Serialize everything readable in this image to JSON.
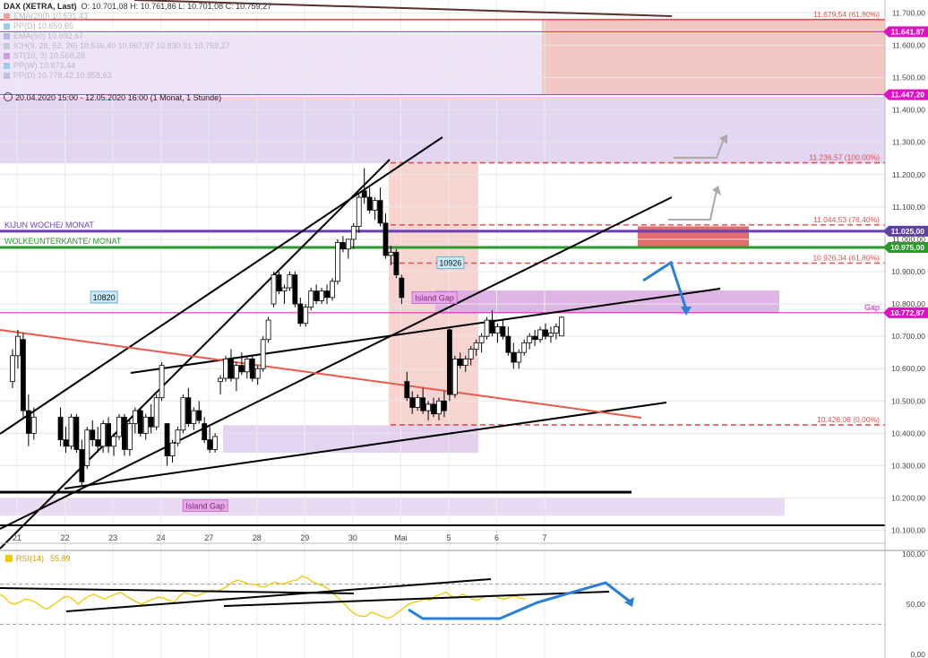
{
  "legend": {
    "title": "DAX (XETRA, Last)",
    "ohlc": "O: 10.701,08  H: 10.761,86  L: 10.701,08  C: 10.759,27",
    "indicators": [
      {
        "label": "EMA(200)  10.531,43",
        "color": "#f4a0a0"
      },
      {
        "label": "PP(D)  10.659,65",
        "color": "#9ecbe8"
      },
      {
        "label": "EMA(50)  10.692,67",
        "color": "#b8b8d8"
      },
      {
        "label": "ICH(9, 26, 52, 26)  10.646,40  10.667,97  10.830,91  10.759,27",
        "color": "#c8c8dc"
      },
      {
        "label": "ST(10, 3)  10.568,28",
        "color": "#c9a0e0"
      },
      {
        "label": "PP(W)  10.873,44",
        "color": "#9ecbe8"
      },
      {
        "label": "PP(D)  10.778,42  10.858,63",
        "color": "#c0c0d8"
      }
    ]
  },
  "date_range": "20.04.2020 15:00 - 12.05.2020 16:00  (1 Monat, 1 Stunde)",
  "chart_data": {
    "type": "candlestick",
    "title": "DAX (XETRA, Last)",
    "timeframe": "1 Stunde",
    "x_labels": [
      {
        "label": "21",
        "index": 0
      },
      {
        "label": "22",
        "index": 9
      },
      {
        "label": "23",
        "index": 18
      },
      {
        "label": "24",
        "index": 27
      },
      {
        "label": "27",
        "index": 36
      },
      {
        "label": "28",
        "index": 45
      },
      {
        "label": "29",
        "index": 54
      },
      {
        "label": "30",
        "index": 63
      },
      {
        "label": "Mai",
        "index": 72
      },
      {
        "label": "5",
        "index": 81
      },
      {
        "label": "6",
        "index": 90
      },
      {
        "label": "7",
        "index": 99
      }
    ],
    "x_range": [
      -2,
      148
    ],
    "ylim": [
      10060,
      11740
    ],
    "y_ticks": [
      10100,
      10200,
      10300,
      10400,
      10500,
      10600,
      10700,
      10800,
      10900,
      11000,
      11100,
      11200,
      11300,
      11400,
      11500,
      11600,
      11700
    ],
    "y_tick_labels": [
      "10.100,00",
      "10.200,00",
      "10.300,00",
      "10.400,00",
      "10.500,00",
      "10.600,00",
      "10.700,00",
      "10.800,00",
      "10.900,00",
      "11.000,00",
      "11.100,00",
      "11.200,00",
      "11.300,00",
      "11.400,00",
      "11.500,00",
      "11.600,00",
      "11.700,00"
    ],
    "candles": [
      [
        10560,
        10660,
        10540,
        10640
      ],
      [
        10640,
        10720,
        10600,
        10700
      ],
      [
        10690,
        10710,
        10450,
        10470
      ],
      [
        10470,
        10520,
        10360,
        10400
      ],
      [
        10400,
        10480,
        10380,
        10450
      ],
      [
        10450,
        10480,
        10360,
        10380
      ],
      [
        10380,
        10420,
        10340,
        10360
      ],
      [
        10360,
        10460,
        10350,
        10450
      ],
      [
        10450,
        10460,
        10340,
        10350
      ],
      [
        10350,
        10380,
        10240,
        10250
      ],
      [
        10300,
        10420,
        10290,
        10410
      ],
      [
        10410,
        10440,
        10360,
        10380
      ],
      [
        10380,
        10420,
        10340,
        10360
      ],
      [
        10360,
        10440,
        10340,
        10430
      ],
      [
        10430,
        10450,
        10340,
        10360
      ],
      [
        10360,
        10400,
        10330,
        10390
      ],
      [
        10390,
        10460,
        10380,
        10450
      ],
      [
        10450,
        10460,
        10330,
        10350
      ],
      [
        10350,
        10440,
        10330,
        10430
      ],
      [
        10430,
        10480,
        10400,
        10470
      ],
      [
        10470,
        10480,
        10390,
        10400
      ],
      [
        10400,
        10460,
        10380,
        10450
      ],
      [
        10450,
        10490,
        10400,
        10420
      ],
      [
        10420,
        10520,
        10410,
        10510
      ],
      [
        10510,
        10620,
        10500,
        10610
      ],
      [
        10430,
        10420,
        10300,
        10330
      ],
      [
        10330,
        10380,
        10310,
        10370
      ],
      [
        10370,
        10420,
        10360,
        10410
      ],
      [
        10410,
        10520,
        10400,
        10510
      ],
      [
        10510,
        10540,
        10420,
        10430
      ],
      [
        10430,
        10480,
        10410,
        10470
      ],
      [
        10470,
        10500,
        10430,
        10440
      ],
      [
        10430,
        10450,
        10370,
        10380
      ],
      [
        10380,
        10420,
        10340,
        10350
      ],
      [
        10350,
        10400,
        10340,
        10390
      ],
      [
        10560,
        10580,
        10520,
        10570
      ],
      [
        10570,
        10640,
        10560,
        10630
      ],
      [
        10630,
        10660,
        10560,
        10570
      ],
      [
        10570,
        10620,
        10530,
        10610
      ],
      [
        10610,
        10650,
        10580,
        10590
      ],
      [
        10590,
        10640,
        10570,
        10630
      ],
      [
        10630,
        10640,
        10560,
        10570
      ],
      [
        10570,
        10610,
        10550,
        10600
      ],
      [
        10600,
        10700,
        10590,
        10690
      ],
      [
        10690,
        10760,
        10680,
        10750
      ],
      [
        10800,
        10900,
        10790,
        10890
      ],
      [
        10890,
        10900,
        10830,
        10840
      ],
      [
        10840,
        10860,
        10800,
        10850
      ],
      [
        10850,
        10900,
        10840,
        10890
      ],
      [
        10890,
        10900,
        10790,
        10800
      ],
      [
        10800,
        10820,
        10730,
        10740
      ],
      [
        10740,
        10800,
        10730,
        10790
      ],
      [
        10790,
        10850,
        10780,
        10840
      ],
      [
        10840,
        10860,
        10800,
        10810
      ],
      [
        10810,
        10850,
        10800,
        10840
      ],
      [
        10840,
        10860,
        10800,
        10820
      ],
      [
        10820,
        10880,
        10810,
        10870
      ],
      [
        10870,
        11000,
        10860,
        10990
      ],
      [
        10990,
        11010,
        10960,
        10970
      ],
      [
        10970,
        11000,
        10940,
        11000
      ],
      [
        11000,
        11050,
        10970,
        11040
      ],
      [
        11040,
        11140,
        11020,
        11130
      ],
      [
        11150,
        11220,
        11110,
        11130
      ],
      [
        11130,
        11160,
        11080,
        11090
      ],
      [
        11090,
        11130,
        11060,
        11120
      ],
      [
        11120,
        11160,
        11040,
        11050
      ],
      [
        11050,
        11080,
        10940,
        10950
      ],
      [
        10950,
        10980,
        10920,
        10960
      ],
      [
        10960,
        10970,
        10880,
        10890
      ],
      [
        10880,
        10890,
        10800,
        10820
      ],
      [
        10560,
        10590,
        10500,
        10510
      ],
      [
        10510,
        10530,
        10460,
        10480
      ],
      [
        10480,
        10520,
        10470,
        10510
      ],
      [
        10510,
        10540,
        10460,
        10470
      ],
      [
        10470,
        10500,
        10440,
        10490
      ],
      [
        10490,
        10510,
        10450,
        10460
      ],
      [
        10460,
        10510,
        10440,
        10500
      ],
      [
        10500,
        10530,
        10450,
        10470
      ],
      [
        10720,
        10730,
        10500,
        10520
      ],
      [
        10520,
        10640,
        10510,
        10630
      ],
      [
        10630,
        10650,
        10600,
        10610
      ],
      [
        10610,
        10640,
        10590,
        10630
      ],
      [
        10630,
        10670,
        10610,
        10660
      ],
      [
        10660,
        10690,
        10640,
        10680
      ],
      [
        10680,
        10710,
        10650,
        10700
      ],
      [
        10700,
        10760,
        10690,
        10750
      ],
      [
        10750,
        10780,
        10700,
        10710
      ],
      [
        10710,
        10740,
        10680,
        10730
      ],
      [
        10730,
        10750,
        10690,
        10700
      ],
      [
        10700,
        10730,
        10640,
        10650
      ],
      [
        10650,
        10680,
        10600,
        10620
      ],
      [
        10620,
        10660,
        10600,
        10650
      ],
      [
        10650,
        10690,
        10640,
        10680
      ],
      [
        10680,
        10710,
        10660,
        10700
      ],
      [
        10700,
        10720,
        10670,
        10690
      ],
      [
        10690,
        10730,
        10680,
        10720
      ],
      [
        10720,
        10740,
        10690,
        10700
      ],
      [
        10700,
        10730,
        10680,
        10710
      ],
      [
        10710,
        10740,
        10690,
        10730
      ],
      [
        10701,
        10762,
        10701,
        10759
      ]
    ],
    "candle_x": [
      0,
      1,
      2,
      3,
      4,
      9,
      10,
      11,
      12,
      13,
      14,
      15,
      16,
      17,
      18,
      19,
      20,
      21,
      22,
      23,
      24,
      25,
      26,
      27,
      28,
      29,
      30,
      31,
      32,
      33,
      34,
      35,
      36,
      37,
      38,
      39,
      40,
      41,
      42,
      43,
      44,
      45,
      46,
      47,
      48,
      49,
      50,
      51,
      52,
      53,
      54,
      55,
      56,
      57,
      58,
      59,
      60,
      61,
      62,
      63,
      64,
      65,
      66,
      67,
      68,
      69,
      70,
      71,
      72,
      73,
      74,
      75,
      76,
      77,
      78,
      79,
      80,
      81,
      82,
      83,
      84,
      85,
      86,
      87,
      88,
      89,
      90,
      91,
      92,
      93,
      94,
      95,
      96,
      97,
      98,
      99,
      100,
      101,
      102,
      103,
      104
    ],
    "horizontal_levels": [
      {
        "value": 11679.54,
        "label": "11.679,54 (61,80%)",
        "color": "#e05050",
        "style": "solid"
      },
      {
        "value": 11236.57,
        "label": "11.236,57 (100,00%)",
        "color": "#e05050",
        "style": "dashed"
      },
      {
        "value": 11044.53,
        "label": "11.044,53 (76,40%)",
        "color": "#e05050",
        "style": "dashed"
      },
      {
        "value": 10926.34,
        "label": "10.926,34 (61,80%)",
        "color": "#e05050",
        "style": "dashed"
      },
      {
        "value": 10426.08,
        "label": "10.426,08 (0,00%)",
        "color": "#e05050",
        "style": "dashed"
      }
    ],
    "price_badges": [
      {
        "value": 11641.87,
        "label": "11.641,87",
        "color": "#e010c0"
      },
      {
        "value": 11447.2,
        "label": "11.447,20",
        "color": "#e010c0"
      },
      {
        "value": 11025.0,
        "label": "11.025,00",
        "color": "#6040a0"
      },
      {
        "value": 10975.0,
        "label": "10.975,00",
        "color": "#2a9a2a"
      },
      {
        "value": 10772.87,
        "label": "10.772,87",
        "color": "#e010c0"
      }
    ],
    "named_lines": [
      {
        "value": 11025,
        "label": "KIJUN WOCHE/ MONAT",
        "color": "#6a3fb0"
      },
      {
        "value": 10975,
        "label": "WOLKEUNTERKANTE/ MONAT",
        "color": "#2a9a2a"
      },
      {
        "value": 10772.87,
        "label": "Gap",
        "color": "#e010c0"
      }
    ],
    "zone_labels": [
      {
        "label": "Island Gap",
        "x": 79,
        "y": 10818
      },
      {
        "label": "Island Gap",
        "x": 36,
        "y": 10175
      }
    ],
    "value_boxes": [
      {
        "label": "10820",
        "x": 17,
        "y": 10820
      },
      {
        "label": "10926",
        "x": 82,
        "y": 10926
      }
    ],
    "rsi": {
      "label": "RSI(14)",
      "value": "55,89",
      "ylim": [
        0,
        100
      ],
      "y_ticks": [
        0,
        50,
        100
      ],
      "y_tick_labels": [
        "0,00",
        "50,00",
        "100,00"
      ],
      "values": [
        62,
        60,
        58,
        52,
        50,
        52,
        55,
        54,
        52,
        48,
        45,
        48,
        52,
        56,
        58,
        55,
        50,
        55,
        58,
        60,
        57,
        55,
        58,
        60,
        62,
        58,
        55,
        52,
        50,
        53,
        55,
        57,
        56,
        54,
        52,
        58,
        62,
        60,
        58,
        60,
        62,
        64,
        63,
        65,
        68,
        72,
        74,
        72,
        70,
        70,
        68,
        67,
        70,
        72,
        70,
        71,
        73,
        74,
        78,
        76,
        72,
        70,
        68,
        65,
        60,
        55,
        50,
        44,
        40,
        38,
        38,
        42,
        40,
        38,
        36,
        38,
        42,
        46,
        50,
        52,
        53,
        55,
        54,
        58,
        60,
        62,
        58,
        56,
        60,
        58,
        55,
        54,
        57,
        58,
        59,
        56,
        55,
        57,
        58,
        56,
        55
      ]
    }
  },
  "colors": {
    "up_candle": "#ffffff",
    "down_candle": "#000000",
    "fib": "#e05050",
    "purple_zone": "#d9c8ec",
    "pink_zone": "#f2c2bc",
    "trend_line": "#000000",
    "red_trend": "#e85a4a",
    "blue_arrow": "#2a7fd8",
    "gray_arrow": "#aaaaaa",
    "rsi_line": "#f0c800"
  }
}
